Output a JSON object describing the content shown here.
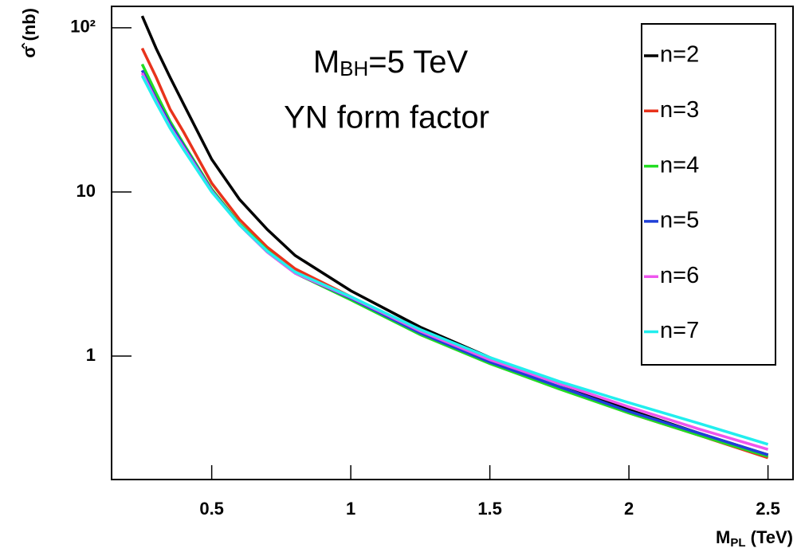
{
  "chart_data": {
    "type": "line",
    "annotations": [
      [
        "M",
        "BH",
        "=5 TeV"
      ],
      "YN form factor"
    ],
    "x_label": [
      "M",
      "PL",
      " (TeV)"
    ],
    "y_label": "σ̂ (nb)",
    "x": [
      0.25,
      0.3,
      0.35,
      0.4,
      0.5,
      0.6,
      0.7,
      0.8,
      1,
      1.25,
      1.5,
      1.75,
      2,
      2.25,
      2.5
    ],
    "series": [
      {
        "name": "n=2",
        "color": "#000000",
        "values": [
          118,
          75,
          50,
          34,
          15.8,
          9.0,
          5.9,
          4.1,
          2.5,
          1.5,
          0.98,
          0.68,
          0.47,
          0.34,
          0.25
        ]
      },
      {
        "name": "n=3",
        "color": "#e8331c",
        "values": [
          75,
          50,
          32,
          23,
          11.3,
          6.8,
          4.6,
          3.4,
          2.3,
          1.4,
          0.92,
          0.64,
          0.45,
          0.33,
          0.24
        ]
      },
      {
        "name": "n=4",
        "color": "#22dd22",
        "values": [
          60,
          40,
          27,
          19.5,
          10.4,
          6.4,
          4.4,
          3.2,
          2.2,
          1.35,
          0.9,
          0.63,
          0.45,
          0.33,
          0.245
        ]
      },
      {
        "name": "n=5",
        "color": "#1f3fd8",
        "values": [
          55,
          37,
          26,
          19,
          10.2,
          6.3,
          4.3,
          3.2,
          2.25,
          1.38,
          0.92,
          0.65,
          0.46,
          0.34,
          0.25
        ]
      },
      {
        "name": "n=6",
        "color": "#ee55ee",
        "values": [
          53,
          36,
          25,
          18.5,
          10.1,
          6.3,
          4.3,
          3.2,
          2.28,
          1.42,
          0.95,
          0.68,
          0.49,
          0.36,
          0.27
        ]
      },
      {
        "name": "n=7",
        "color": "#22eeee",
        "values": [
          51,
          35,
          24.5,
          18,
          10,
          6.3,
          4.35,
          3.25,
          2.3,
          1.45,
          0.98,
          0.7,
          0.52,
          0.39,
          0.29
        ]
      }
    ],
    "xlim": [
      0.14,
      2.59
    ],
    "ylim": [
      0.177,
      135
    ],
    "log_y": true,
    "xticks": [
      0.5,
      1,
      1.5,
      2,
      2.5
    ],
    "yticks": [
      1,
      10,
      {
        "value": 100,
        "label": "10²"
      }
    ],
    "legend": "top-right"
  }
}
